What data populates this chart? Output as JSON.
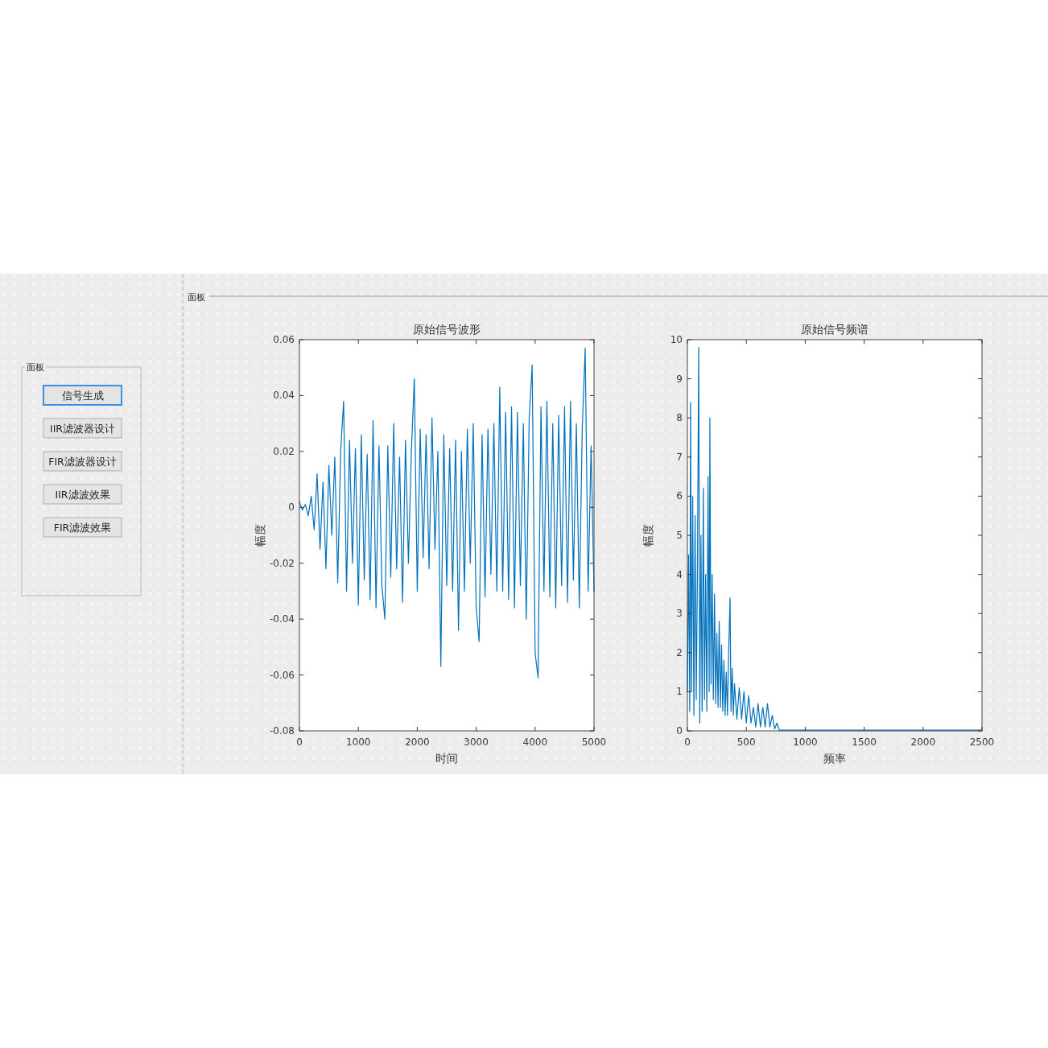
{
  "chart_data": [
    {
      "type": "other",
      "title": "面板",
      "annotations": [
        "信号生成",
        "IIR滤波器设计",
        "FIR滤波器设计",
        "IIR滤波效果",
        "FIR滤波效果"
      ]
    },
    {
      "type": "other",
      "title": "面板"
    },
    {
      "type": "line",
      "title": "原始信号波形",
      "xlabel": "时间",
      "ylabel": "幅度",
      "grid": false,
      "marker": "none",
      "line_style": "solid",
      "xlim": [
        0,
        5000
      ],
      "ylim": [
        -0.08,
        0.06
      ],
      "xticks": [
        0,
        1000,
        2000,
        3000,
        4000,
        5000
      ],
      "yticks": [
        -0.08,
        -0.06,
        -0.04,
        -0.02,
        0,
        0.02,
        0.04,
        0.06
      ],
      "series": [
        {
          "color": "#0072bd",
          "x": [
            0,
            50,
            100,
            150,
            200,
            250,
            300,
            350,
            400,
            450,
            500,
            550,
            600,
            650,
            700,
            750,
            800,
            850,
            900,
            950,
            1000,
            1050,
            1100,
            1150,
            1200,
            1250,
            1300,
            1350,
            1400,
            1450,
            1500,
            1550,
            1600,
            1650,
            1700,
            1750,
            1800,
            1850,
            1900,
            1950,
            2000,
            2050,
            2100,
            2150,
            2200,
            2250,
            2300,
            2350,
            2400,
            2450,
            2500,
            2550,
            2600,
            2650,
            2700,
            2750,
            2800,
            2850,
            2900,
            2950,
            3000,
            3050,
            3100,
            3150,
            3200,
            3250,
            3300,
            3350,
            3400,
            3450,
            3500,
            3550,
            3600,
            3650,
            3700,
            3750,
            3800,
            3850,
            3900,
            3950,
            4000,
            4050,
            4100,
            4150,
            4200,
            4250,
            4300,
            4350,
            4400,
            4450,
            4500,
            4550,
            4600,
            4650,
            4700,
            4750,
            4800,
            4850,
            4900,
            4950,
            5000
          ],
          "values": [
            0.002,
            -0.001,
            0.001,
            -0.003,
            0.004,
            -0.008,
            0.012,
            -0.015,
            0.009,
            -0.022,
            0.015,
            -0.01,
            0.018,
            -0.027,
            0.02,
            0.038,
            -0.03,
            0.024,
            -0.02,
            0.021,
            -0.035,
            0.026,
            -0.026,
            0.019,
            -0.033,
            0.031,
            -0.036,
            0.022,
            -0.028,
            -0.04,
            0.022,
            -0.025,
            0.03,
            -0.022,
            0.018,
            -0.034,
            0.024,
            -0.02,
            0.02,
            0.046,
            -0.03,
            0.028,
            -0.018,
            0.026,
            -0.022,
            0.032,
            -0.015,
            0.02,
            -0.057,
            0.026,
            -0.028,
            0.021,
            -0.03,
            0.024,
            -0.044,
            0.02,
            -0.03,
            0.028,
            -0.02,
            0.03,
            -0.036,
            -0.048,
            0.026,
            -0.032,
            0.028,
            -0.024,
            0.03,
            -0.03,
            0.043,
            -0.03,
            0.034,
            -0.033,
            0.036,
            -0.036,
            0.034,
            -0.028,
            0.03,
            -0.04,
            0.032,
            0.051,
            -0.052,
            -0.061,
            0.036,
            -0.03,
            0.038,
            -0.032,
            0.03,
            -0.036,
            0.033,
            -0.028,
            0.036,
            -0.034,
            0.038,
            -0.026,
            0.03,
            -0.036,
            0.028,
            0.057,
            -0.03,
            0.022,
            -0.03
          ]
        }
      ]
    },
    {
      "type": "line",
      "title": "原始信号频谱",
      "xlabel": "频率",
      "ylabel": "幅度",
      "grid": false,
      "marker": "none",
      "line_style": "solid",
      "xlim": [
        0,
        2500
      ],
      "ylim": [
        0,
        10
      ],
      "xticks": [
        0,
        500,
        1000,
        1500,
        2000,
        2500
      ],
      "yticks": [
        0,
        1,
        2,
        3,
        4,
        5,
        6,
        7,
        8,
        9,
        10
      ],
      "series": [
        {
          "color": "#0072bd",
          "x": [
            0,
            10,
            20,
            27,
            35,
            45,
            55,
            65,
            75,
            85,
            96,
            105,
            115,
            125,
            135,
            145,
            155,
            165,
            175,
            185,
            191,
            200,
            210,
            220,
            230,
            240,
            250,
            260,
            270,
            280,
            290,
            300,
            310,
            320,
            330,
            340,
            350,
            362,
            370,
            380,
            390,
            400,
            420,
            440,
            460,
            480,
            500,
            520,
            540,
            560,
            580,
            600,
            620,
            640,
            660,
            680,
            700,
            720,
            740,
            760,
            780,
            800,
            1000,
            1500,
            2000,
            2500
          ],
          "values": [
            1.0,
            4.5,
            0.5,
            8.4,
            1.0,
            6.0,
            0.4,
            5.5,
            0.8,
            4.0,
            9.8,
            0.2,
            5.0,
            0.5,
            6.2,
            0.8,
            4.0,
            0.5,
            6.5,
            1.0,
            8.0,
            1.2,
            4.0,
            0.8,
            3.5,
            0.7,
            2.5,
            0.6,
            2.8,
            0.6,
            2.2,
            0.5,
            1.8,
            0.4,
            1.5,
            0.4,
            2.0,
            3.4,
            0.5,
            1.6,
            0.4,
            1.2,
            0.3,
            1.1,
            0.3,
            1.0,
            0.2,
            0.9,
            0.2,
            0.6,
            0.1,
            0.7,
            0.1,
            0.6,
            0.1,
            0.7,
            0.1,
            0.4,
            0.05,
            0.2,
            0.02,
            0.02,
            0.02,
            0.02,
            0.02,
            0.02
          ]
        }
      ]
    }
  ]
}
